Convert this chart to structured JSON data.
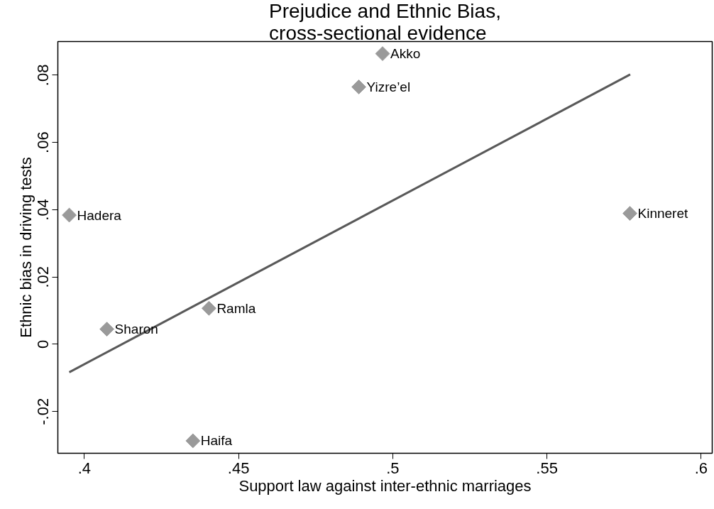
{
  "chart_data": {
    "type": "scatter",
    "title": "Prejudice and Ethnic Bias,\ncross-sectional evidence",
    "xlabel": "Support law against inter-ethnic marriages",
    "ylabel": "Ethnic bias in driving tests",
    "xlim": [
      0.3914,
      0.6036
    ],
    "ylim": [
      -0.0324,
      0.09
    ],
    "xticks": [
      {
        "value": 0.4,
        "label": ".4"
      },
      {
        "value": 0.45,
        "label": ".45"
      },
      {
        "value": 0.5,
        "label": ".5"
      },
      {
        "value": 0.55,
        "label": ".55"
      },
      {
        "value": 0.6,
        "label": ".6"
      }
    ],
    "yticks": [
      {
        "value": -0.02,
        "label": "-.02"
      },
      0,
      {
        "value": 0.02,
        "label": ".02"
      },
      {
        "value": 0.04,
        "label": ".04"
      },
      {
        "value": 0.06,
        "label": ".06"
      },
      {
        "value": 0.08,
        "label": ".08"
      }
    ],
    "grid": false,
    "series": [
      {
        "marker": "diamond",
        "color": "#9a9a9a",
        "x": [
          0.3951,
          0.4073,
          0.4404,
          0.4352,
          0.489,
          0.4967,
          0.5769
        ],
        "values": [
          0.0384,
          0.0045,
          0.0107,
          -0.0287,
          0.0765,
          0.0864,
          0.0389
        ],
        "value_labels": [
          "Hadera",
          "Sharon",
          "Ramla",
          "Haifa",
          "Yizre’el",
          "Akko",
          "Kinneret"
        ]
      },
      {
        "type": "line",
        "color": "#595959",
        "x": [
          0.3951,
          0.577
        ],
        "values": [
          -0.0083,
          0.0802
        ]
      }
    ]
  }
}
